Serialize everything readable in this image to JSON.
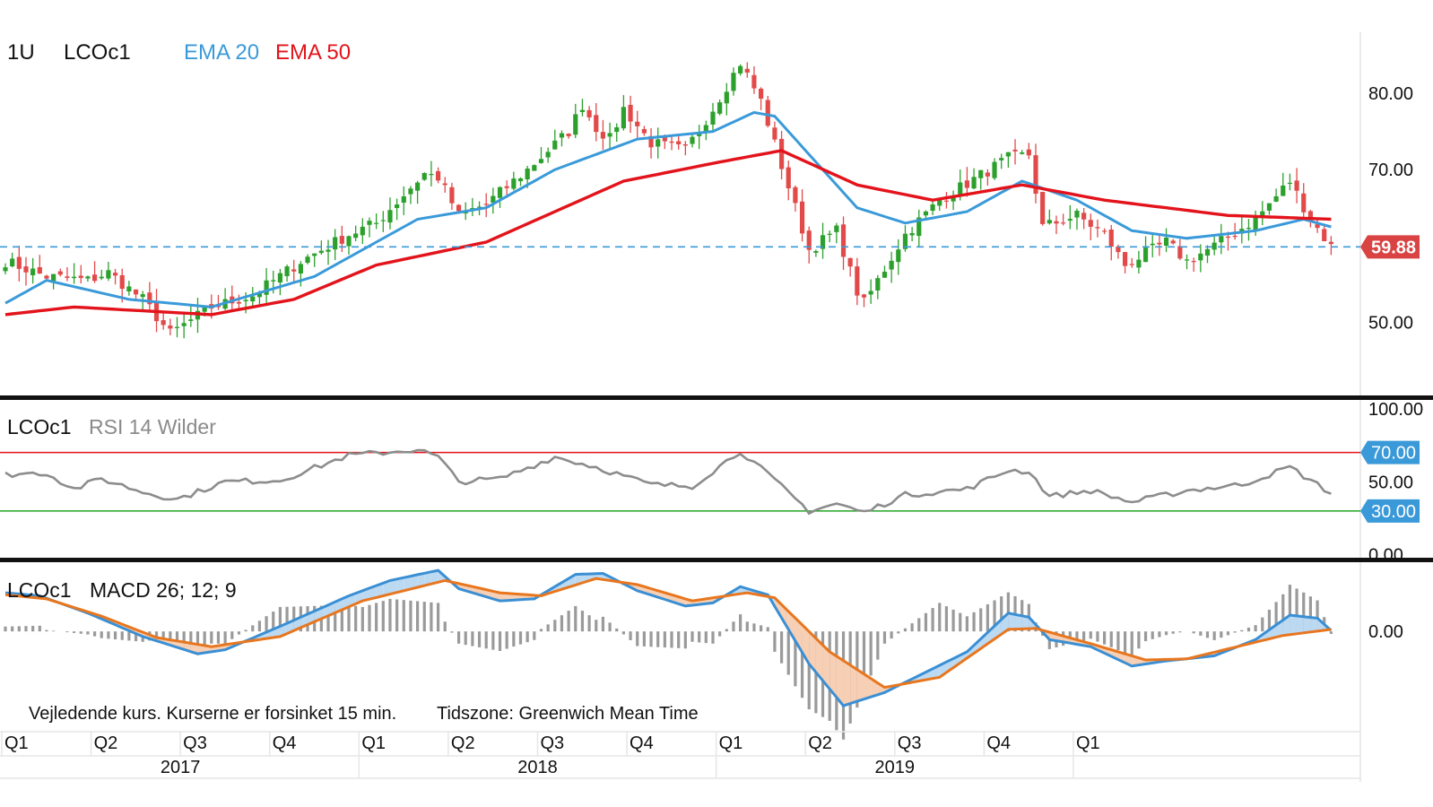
{
  "header": {
    "interval": "1U",
    "symbol": "LCOc1",
    "ema_fast_label": "EMA 20",
    "ema_slow_label": "EMA 50"
  },
  "footer": {
    "disclaimer": "Vejledende kurs. Kurserne er forsinket 15 min.",
    "timezone": "Tidszone: Greenwich Mean Time"
  },
  "colors": {
    "up": "#2ca02c",
    "down": "#e24a4a",
    "ema_fast": "#3a9ad9",
    "ema_slow": "#e3131b",
    "rsi": "#8c8c8c",
    "rsi_upper": "#e3131b",
    "rsi_lower": "#25a525",
    "macd": "#3a8fd4",
    "signal": "#e8761e",
    "last_price_bg": "#d94343",
    "rsi_level_bg": "#3a9ad9"
  },
  "chart_data": [
    {
      "type": "candlestick",
      "name": "price",
      "ylim": [
        41,
        88
      ],
      "y_ticks": [
        "80.00",
        "70.00",
        "50.00"
      ],
      "y_tick_values": [
        80,
        70,
        50
      ],
      "last_price": 59.88,
      "last_price_label": "59.88",
      "legend": [
        "EMA 20",
        "EMA 50"
      ],
      "grid": false,
      "x_quarters": [
        "Q1",
        "Q2",
        "Q3",
        "Q4",
        "Q1",
        "Q2",
        "Q3",
        "Q4",
        "Q1",
        "Q2",
        "Q3",
        "Q4",
        "Q1"
      ],
      "x_years": [
        "2017",
        "2018",
        "2019"
      ],
      "weekly_close_keypoints": [
        {
          "week": 0,
          "close": 58.0
        },
        {
          "week": 6,
          "close": 56.0
        },
        {
          "week": 12,
          "close": 55.5
        },
        {
          "week": 15,
          "close": 56.5
        },
        {
          "week": 20,
          "close": 53.0
        },
        {
          "week": 24,
          "close": 48.5
        },
        {
          "week": 30,
          "close": 52.0
        },
        {
          "week": 36,
          "close": 53.5
        },
        {
          "week": 43,
          "close": 58.0
        },
        {
          "week": 50,
          "close": 61.5
        },
        {
          "week": 54,
          "close": 63.0
        },
        {
          "week": 61,
          "close": 69.5
        },
        {
          "week": 63,
          "close": 69.0
        },
        {
          "week": 66,
          "close": 64.0
        },
        {
          "week": 70,
          "close": 65.5
        },
        {
          "week": 76,
          "close": 70.0
        },
        {
          "week": 82,
          "close": 75.0
        },
        {
          "week": 84,
          "close": 78.5
        },
        {
          "week": 86,
          "close": 75.5
        },
        {
          "week": 88,
          "close": 74.0
        },
        {
          "week": 90,
          "close": 78.0
        },
        {
          "week": 94,
          "close": 73.5
        },
        {
          "week": 99,
          "close": 72.5
        },
        {
          "week": 103,
          "close": 78.0
        },
        {
          "week": 107,
          "close": 84.0
        },
        {
          "week": 110,
          "close": 79.0
        },
        {
          "week": 113,
          "close": 70.5
        },
        {
          "week": 117,
          "close": 59.5
        },
        {
          "week": 121,
          "close": 62.0
        },
        {
          "week": 124,
          "close": 54.0
        },
        {
          "week": 125,
          "close": 52.5
        },
        {
          "week": 131,
          "close": 61.5
        },
        {
          "week": 136,
          "close": 66.0
        },
        {
          "week": 146,
          "close": 71.5
        },
        {
          "week": 149,
          "close": 72.0
        },
        {
          "week": 151,
          "close": 62.5
        },
        {
          "week": 156,
          "close": 64.0
        },
        {
          "week": 160,
          "close": 61.5
        },
        {
          "week": 163,
          "close": 57.5
        },
        {
          "week": 169,
          "close": 60.5
        },
        {
          "week": 172,
          "close": 58.0
        },
        {
          "week": 176,
          "close": 60.0
        },
        {
          "week": 182,
          "close": 63.5
        },
        {
          "week": 187,
          "close": 68.5
        },
        {
          "week": 190,
          "close": 63.5
        },
        {
          "week": 193,
          "close": 59.9
        }
      ],
      "series": [
        {
          "name": "EMA 20",
          "keypoints": [
            {
              "week": 0,
              "value": 52.5
            },
            {
              "week": 6,
              "value": 55.5
            },
            {
              "week": 18,
              "value": 53.0
            },
            {
              "week": 30,
              "value": 52.0
            },
            {
              "week": 45,
              "value": 56.0
            },
            {
              "week": 60,
              "value": 63.5
            },
            {
              "week": 70,
              "value": 65.0
            },
            {
              "week": 80,
              "value": 70.0
            },
            {
              "week": 92,
              "value": 74.0
            },
            {
              "week": 103,
              "value": 75.0
            },
            {
              "week": 109,
              "value": 77.5
            },
            {
              "week": 112,
              "value": 77.0
            },
            {
              "week": 118,
              "value": 71.0
            },
            {
              "week": 124,
              "value": 65.0
            },
            {
              "week": 131,
              "value": 63.0
            },
            {
              "week": 140,
              "value": 64.5
            },
            {
              "week": 148,
              "value": 68.5
            },
            {
              "week": 156,
              "value": 66.0
            },
            {
              "week": 164,
              "value": 62.0
            },
            {
              "week": 172,
              "value": 61.0
            },
            {
              "week": 182,
              "value": 62.0
            },
            {
              "week": 189,
              "value": 63.5
            },
            {
              "week": 193,
              "value": 62.5
            }
          ]
        },
        {
          "name": "EMA 50",
          "keypoints": [
            {
              "week": 0,
              "value": 51.0
            },
            {
              "week": 10,
              "value": 52.0
            },
            {
              "week": 30,
              "value": 51.0
            },
            {
              "week": 42,
              "value": 53.0
            },
            {
              "week": 54,
              "value": 57.5
            },
            {
              "week": 70,
              "value": 60.5
            },
            {
              "week": 90,
              "value": 68.5
            },
            {
              "week": 104,
              "value": 71.0
            },
            {
              "week": 113,
              "value": 72.5
            },
            {
              "week": 124,
              "value": 68.0
            },
            {
              "week": 135,
              "value": 66.0
            },
            {
              "week": 148,
              "value": 68.0
            },
            {
              "week": 160,
              "value": 66.0
            },
            {
              "week": 178,
              "value": 64.0
            },
            {
              "week": 193,
              "value": 63.5
            }
          ]
        }
      ]
    },
    {
      "type": "line",
      "name": "RSI 14 Wilder",
      "label": "RSI 14 Wilder",
      "ylim": [
        -2,
        106
      ],
      "y_ticks": [
        "100.00",
        "50.00",
        "0.00"
      ],
      "y_tick_values": [
        100,
        50,
        0
      ],
      "levels": [
        {
          "value": 70,
          "label": "70.00"
        },
        {
          "value": 30,
          "label": "30.00"
        }
      ],
      "keypoints": [
        {
          "week": 0,
          "value": 55
        },
        {
          "week": 6,
          "value": 56
        },
        {
          "week": 10,
          "value": 45
        },
        {
          "week": 14,
          "value": 52
        },
        {
          "week": 20,
          "value": 43
        },
        {
          "week": 25,
          "value": 38
        },
        {
          "week": 32,
          "value": 50
        },
        {
          "week": 40,
          "value": 51
        },
        {
          "week": 50,
          "value": 68
        },
        {
          "week": 60,
          "value": 72
        },
        {
          "week": 63,
          "value": 67
        },
        {
          "week": 66,
          "value": 50
        },
        {
          "week": 72,
          "value": 52
        },
        {
          "week": 80,
          "value": 67
        },
        {
          "week": 86,
          "value": 60
        },
        {
          "week": 94,
          "value": 48
        },
        {
          "week": 100,
          "value": 47
        },
        {
          "week": 107,
          "value": 71
        },
        {
          "week": 111,
          "value": 55
        },
        {
          "week": 117,
          "value": 30
        },
        {
          "week": 121,
          "value": 35
        },
        {
          "week": 125,
          "value": 29
        },
        {
          "week": 131,
          "value": 41
        },
        {
          "week": 140,
          "value": 45
        },
        {
          "week": 146,
          "value": 58
        },
        {
          "week": 149,
          "value": 57
        },
        {
          "week": 152,
          "value": 40
        },
        {
          "week": 158,
          "value": 44
        },
        {
          "week": 164,
          "value": 36
        },
        {
          "week": 172,
          "value": 44
        },
        {
          "week": 180,
          "value": 48
        },
        {
          "week": 187,
          "value": 60
        },
        {
          "week": 193,
          "value": 42
        }
      ]
    },
    {
      "type": "line",
      "name": "MACD 26; 12; 9",
      "label": "MACD 26; 12; 9",
      "ylim": [
        -8,
        6.8
      ],
      "y_ticks": [
        "0.00"
      ],
      "y_tick_values": [
        0
      ],
      "series": [
        {
          "name": "MACD",
          "keypoints": [
            {
              "week": 0,
              "value": 3.8
            },
            {
              "week": 5,
              "value": 3.5
            },
            {
              "week": 12,
              "value": 1.8
            },
            {
              "week": 20,
              "value": -0.5
            },
            {
              "week": 28,
              "value": -2.2
            },
            {
              "week": 32,
              "value": -1.8
            },
            {
              "week": 40,
              "value": 0.5
            },
            {
              "week": 50,
              "value": 3.5
            },
            {
              "week": 56,
              "value": 5.0
            },
            {
              "week": 63,
              "value": 6.0
            },
            {
              "week": 66,
              "value": 4.2
            },
            {
              "week": 72,
              "value": 3.0
            },
            {
              "week": 77,
              "value": 3.2
            },
            {
              "week": 83,
              "value": 5.6
            },
            {
              "week": 87,
              "value": 5.7
            },
            {
              "week": 92,
              "value": 4.0
            },
            {
              "week": 99,
              "value": 2.5
            },
            {
              "week": 103,
              "value": 2.8
            },
            {
              "week": 107,
              "value": 4.4
            },
            {
              "week": 111,
              "value": 3.6
            },
            {
              "week": 117,
              "value": -3.2
            },
            {
              "week": 122,
              "value": -7.3
            },
            {
              "week": 128,
              "value": -6.0
            },
            {
              "week": 134,
              "value": -4.0
            },
            {
              "week": 140,
              "value": -2.0
            },
            {
              "week": 146,
              "value": 1.8
            },
            {
              "week": 149,
              "value": 1.4
            },
            {
              "week": 152,
              "value": -0.8
            },
            {
              "week": 158,
              "value": -1.5
            },
            {
              "week": 164,
              "value": -3.4
            },
            {
              "week": 169,
              "value": -2.9
            },
            {
              "week": 176,
              "value": -2.4
            },
            {
              "week": 182,
              "value": -0.8
            },
            {
              "week": 187,
              "value": 1.6
            },
            {
              "week": 191,
              "value": 1.3
            },
            {
              "week": 193,
              "value": 0.1
            }
          ]
        },
        {
          "name": "Signal",
          "keypoints": [
            {
              "week": 0,
              "value": 3.6
            },
            {
              "week": 6,
              "value": 3.2
            },
            {
              "week": 14,
              "value": 1.5
            },
            {
              "week": 22,
              "value": -0.6
            },
            {
              "week": 30,
              "value": -1.5
            },
            {
              "week": 40,
              "value": -0.5
            },
            {
              "week": 52,
              "value": 3.0
            },
            {
              "week": 64,
              "value": 5.0
            },
            {
              "week": 72,
              "value": 3.8
            },
            {
              "week": 78,
              "value": 3.5
            },
            {
              "week": 86,
              "value": 5.2
            },
            {
              "week": 92,
              "value": 4.6
            },
            {
              "week": 100,
              "value": 3.0
            },
            {
              "week": 108,
              "value": 3.8
            },
            {
              "week": 112,
              "value": 3.3
            },
            {
              "week": 120,
              "value": -2.0
            },
            {
              "week": 128,
              "value": -5.5
            },
            {
              "week": 136,
              "value": -4.5
            },
            {
              "week": 146,
              "value": 0.2
            },
            {
              "week": 150,
              "value": 0.3
            },
            {
              "week": 158,
              "value": -1.2
            },
            {
              "week": 166,
              "value": -2.8
            },
            {
              "week": 172,
              "value": -2.7
            },
            {
              "week": 186,
              "value": -0.4
            },
            {
              "week": 193,
              "value": 0.2
            }
          ]
        }
      ]
    }
  ]
}
